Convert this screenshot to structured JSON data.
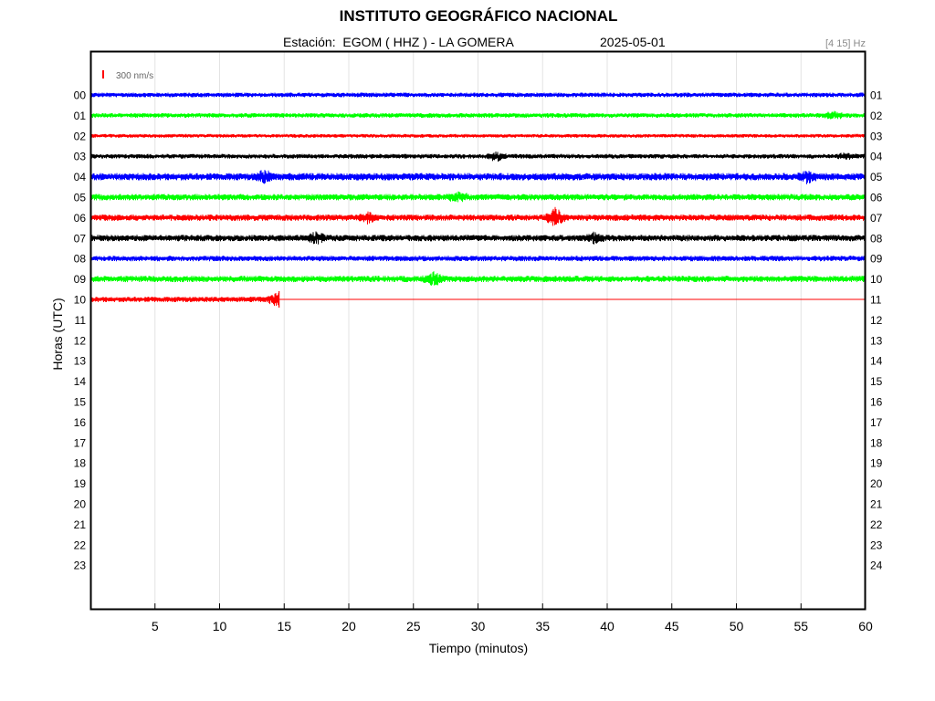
{
  "header": {
    "institution": "INSTITUTO GEOGRÁFICO NACIONAL",
    "station_line": "Estación:  EGOM ( HHZ ) - LA GOMERA",
    "date": "2025-05-01",
    "filter": "[4 15] Hz"
  },
  "chart_data": {
    "type": "line",
    "chart_kind": "helicorder",
    "xlabel": "Tiempo (minutos)",
    "ylabel": "Horas (UTC)",
    "xlim": [
      0,
      60
    ],
    "x_ticks": [
      5,
      10,
      15,
      20,
      25,
      30,
      35,
      40,
      45,
      50,
      55,
      60
    ],
    "left_hour_labels": [
      "00",
      "01",
      "02",
      "03",
      "04",
      "05",
      "06",
      "07",
      "08",
      "09",
      "10",
      "11",
      "12",
      "13",
      "14",
      "15",
      "16",
      "17",
      "18",
      "19",
      "20",
      "21",
      "22",
      "23"
    ],
    "right_hour_labels": [
      "01",
      "02",
      "03",
      "04",
      "05",
      "06",
      "07",
      "08",
      "09",
      "10",
      "11",
      "12",
      "13",
      "14",
      "15",
      "16",
      "17",
      "18",
      "19",
      "20",
      "21",
      "22",
      "23",
      "24"
    ],
    "grid": "vertical",
    "scale_bar": {
      "label": "300 nm/s",
      "color": "#ff0000"
    },
    "trace_colors": [
      "#0000ff",
      "#00ff00",
      "#ff0000",
      "#000000"
    ],
    "traces": [
      {
        "hour": "00",
        "color": "#0000ff",
        "start_min": 0,
        "end_min": 60,
        "amplitude": 2.5,
        "events": []
      },
      {
        "hour": "01",
        "color": "#00ff00",
        "start_min": 0,
        "end_min": 60,
        "amplitude": 2.5,
        "events": [
          {
            "t": 57.5,
            "amp": 4
          }
        ]
      },
      {
        "hour": "02",
        "color": "#ff0000",
        "start_min": 0,
        "end_min": 60,
        "amplitude": 2.0,
        "events": []
      },
      {
        "hour": "03",
        "color": "#000000",
        "start_min": 0,
        "end_min": 60,
        "amplitude": 2.5,
        "events": [
          {
            "t": 31.5,
            "amp": 5
          },
          {
            "t": 58.5,
            "amp": 3
          }
        ]
      },
      {
        "hour": "04",
        "color": "#0000ff",
        "start_min": 0,
        "end_min": 60,
        "amplitude": 4.0,
        "events": [
          {
            "t": 13.5,
            "amp": 6
          },
          {
            "t": 55.5,
            "amp": 5
          }
        ]
      },
      {
        "hour": "05",
        "color": "#00ff00",
        "start_min": 0,
        "end_min": 60,
        "amplitude": 3.5,
        "events": [
          {
            "t": 28.5,
            "amp": 5
          }
        ]
      },
      {
        "hour": "06",
        "color": "#ff0000",
        "start_min": 0,
        "end_min": 60,
        "amplitude": 3.5,
        "events": [
          {
            "t": 21.5,
            "amp": 5
          },
          {
            "t": 36.0,
            "amp": 9
          }
        ]
      },
      {
        "hour": "07",
        "color": "#000000",
        "start_min": 0,
        "end_min": 60,
        "amplitude": 3.5,
        "events": [
          {
            "t": 17.5,
            "amp": 6
          },
          {
            "t": 39.0,
            "amp": 5
          }
        ]
      },
      {
        "hour": "08",
        "color": "#0000ff",
        "start_min": 0,
        "end_min": 60,
        "amplitude": 3.0,
        "events": []
      },
      {
        "hour": "09",
        "color": "#00ff00",
        "start_min": 0,
        "end_min": 60,
        "amplitude": 3.5,
        "events": [
          {
            "t": 26.5,
            "amp": 7
          }
        ]
      },
      {
        "hour": "10",
        "color": "#ff0000",
        "start_min": 0,
        "end_min": 14.6,
        "amplitude": 3.0,
        "events": [
          {
            "t": 14.5,
            "amp": 8
          }
        ]
      }
    ]
  }
}
